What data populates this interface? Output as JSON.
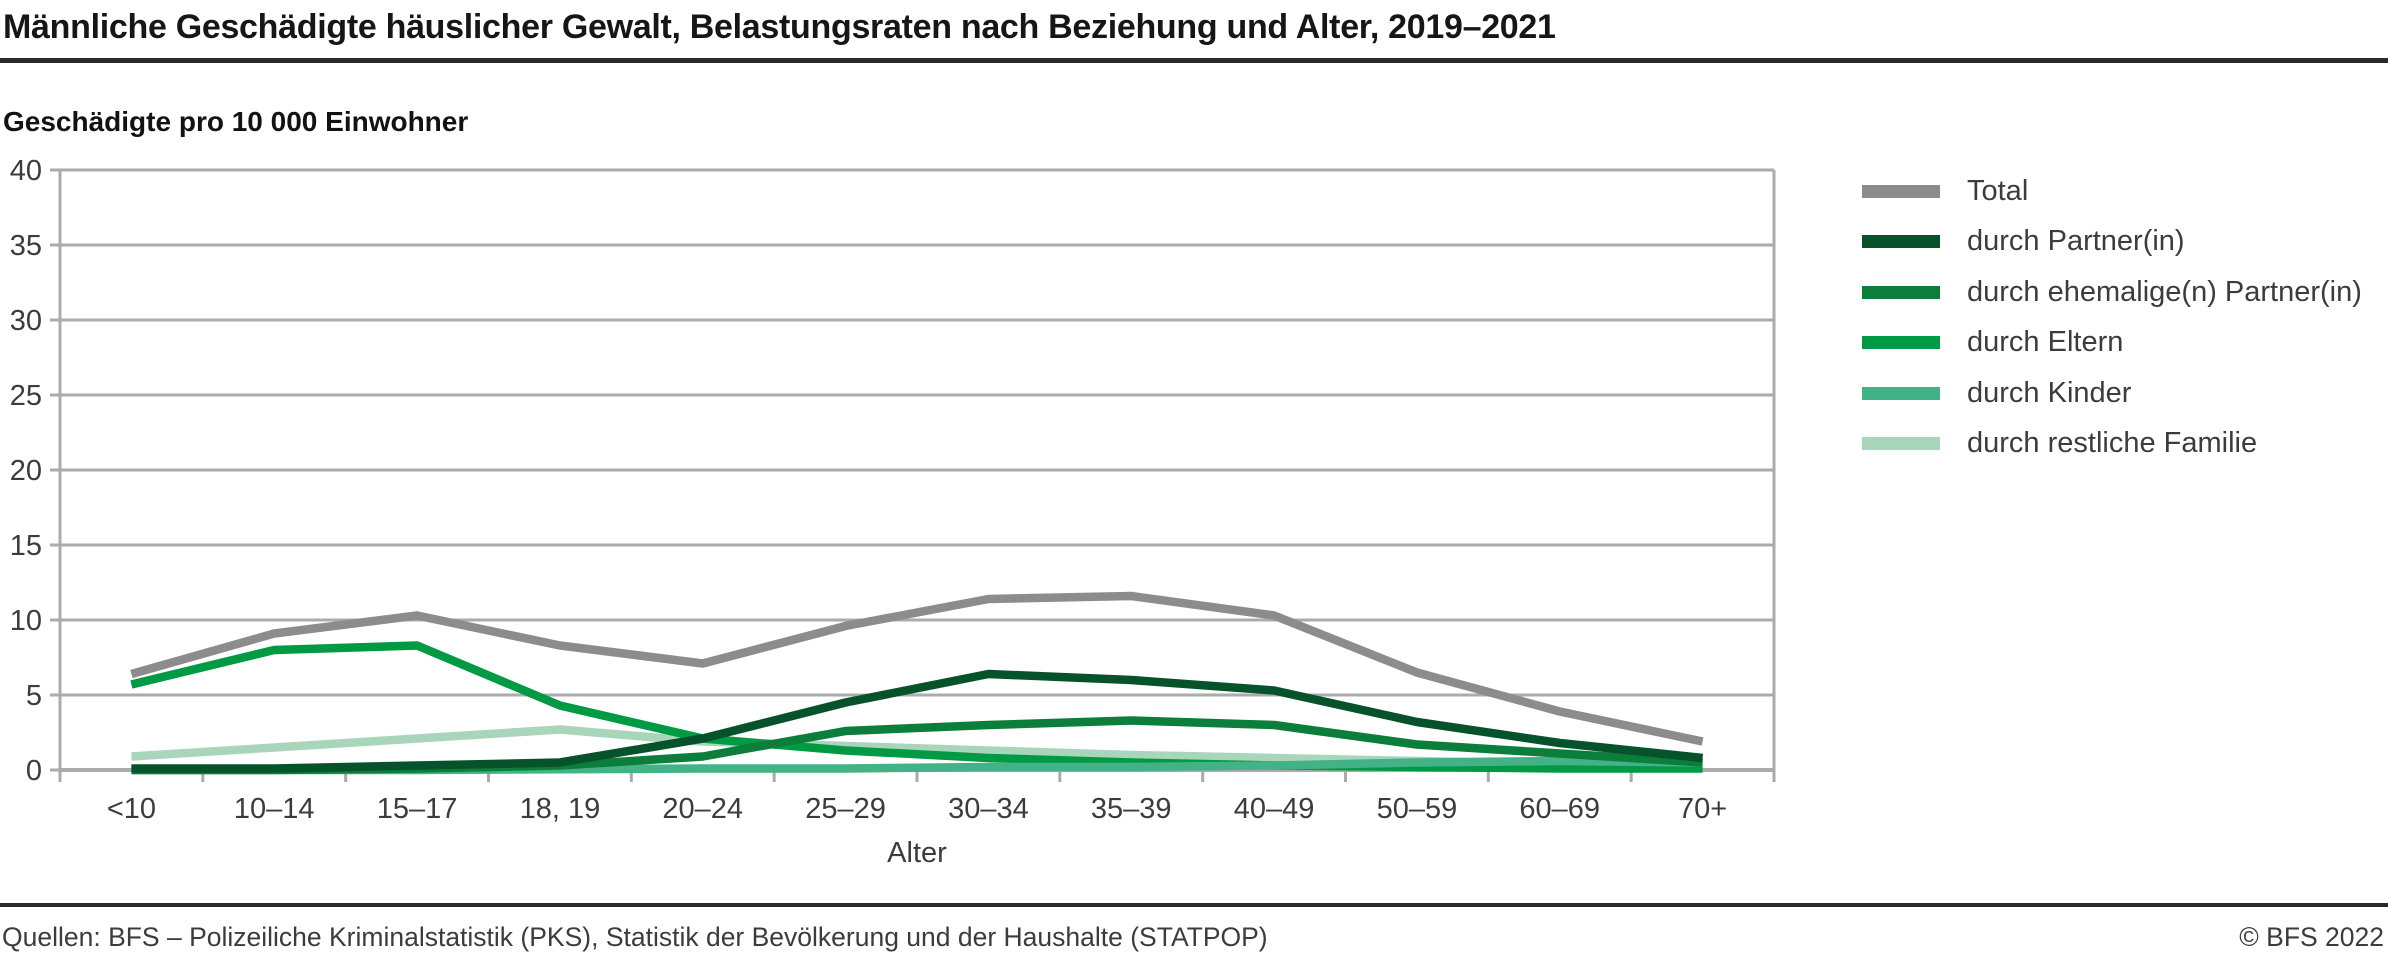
{
  "header": {
    "title": "Männliche Geschädigte häuslicher Gewalt, Belastungsraten nach Beziehung und Alter, 2019–2021",
    "subtitle": "Geschädigte pro 10 000 Einwohner"
  },
  "chart_data": {
    "type": "line",
    "title": "Männliche Geschädigte häuslicher Gewalt, Belastungsraten nach Beziehung und Alter, 2019–2021",
    "ylabel": "Geschädigte pro 10 000 Einwohner",
    "xlabel": "Alter",
    "ylim": [
      0,
      40
    ],
    "yticks": [
      0,
      5,
      10,
      15,
      20,
      25,
      30,
      35,
      40
    ],
    "grid": true,
    "legend_position": "right",
    "categories": [
      "<10",
      "10–14",
      "15–17",
      "18, 19",
      "20–24",
      "25–29",
      "30–34",
      "35–39",
      "40–49",
      "50–59",
      "60–69",
      "70+"
    ],
    "series": [
      {
        "name": "Total",
        "color": "#8C8C8C",
        "values": [
          6.4,
          9.1,
          10.3,
          8.3,
          7.1,
          9.6,
          11.4,
          11.6,
          10.3,
          6.5,
          3.9,
          1.9
        ]
      },
      {
        "name": "durch Partner(in)",
        "color": "#05522B",
        "values": [
          0.1,
          0.1,
          0.3,
          0.5,
          2.1,
          4.5,
          6.4,
          6.0,
          5.3,
          3.2,
          1.8,
          0.8
        ]
      },
      {
        "name": "durch ehemalige(n) Partner(in)",
        "color": "#0A7E3A",
        "values": [
          0.0,
          0.0,
          0.1,
          0.3,
          0.9,
          2.6,
          3.0,
          3.3,
          3.0,
          1.7,
          1.1,
          0.5
        ]
      },
      {
        "name": "durch Eltern",
        "color": "#009A44",
        "values": [
          5.7,
          8.0,
          8.3,
          4.3,
          2.1,
          1.3,
          0.8,
          0.5,
          0.3,
          0.2,
          0.1,
          0.1
        ]
      },
      {
        "name": "durch Kinder",
        "color": "#43B287",
        "values": [
          0.0,
          0.0,
          0.0,
          0.05,
          0.1,
          0.1,
          0.2,
          0.2,
          0.3,
          0.5,
          0.6,
          0.5
        ]
      },
      {
        "name": "durch restliche Familie",
        "color": "#A9D6BB",
        "values": [
          0.9,
          1.5,
          2.1,
          2.7,
          1.9,
          1.6,
          1.3,
          1.0,
          0.8,
          0.6,
          0.4,
          0.2
        ]
      }
    ]
  },
  "footer": {
    "sources": "Quellen: BFS – Polizeiliche Kriminalstatistik (PKS), Statistik der Bevölkerung und der Haushalte (STATPOP)",
    "copyright": "© BFS 2022"
  }
}
